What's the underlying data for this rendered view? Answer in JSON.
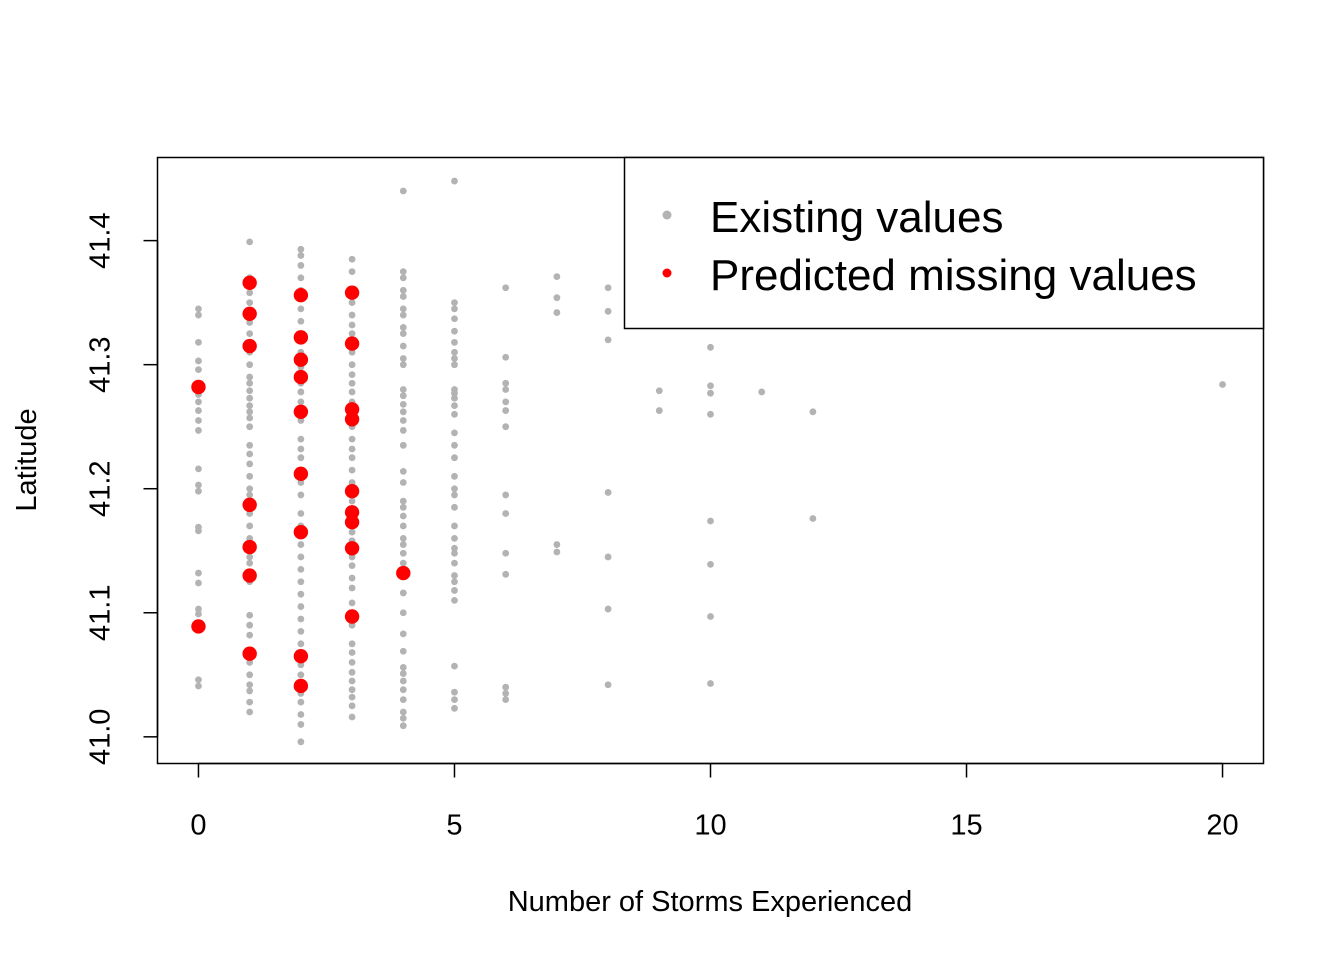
{
  "chart_data": {
    "type": "scatter",
    "title": "",
    "xlabel": "Number of Storms Experienced",
    "ylabel": "Latitude",
    "xlim": [
      -0.8,
      20.8
    ],
    "ylim": [
      40.9785,
      41.467
    ],
    "xticks": [
      0,
      5,
      10,
      15,
      20
    ],
    "xtick_labels": [
      "0",
      "5",
      "10",
      "15",
      "20"
    ],
    "yticks": [
      41.0,
      41.1,
      41.2,
      41.3,
      41.4
    ],
    "ytick_labels": [
      "41.0",
      "41.1",
      "41.2",
      "41.3",
      "41.4"
    ],
    "grid": false,
    "legend_position": "top-right",
    "series": [
      {
        "name": "Existing values",
        "color": "#b3b3b3",
        "marker": "small-dot",
        "points": [
          [
            0,
            41.345
          ],
          [
            0,
            41.34
          ],
          [
            0,
            41.318
          ],
          [
            0,
            41.303
          ],
          [
            0,
            41.296
          ],
          [
            0,
            41.283
          ],
          [
            0,
            41.276
          ],
          [
            0,
            41.27
          ],
          [
            0,
            41.263
          ],
          [
            0,
            41.255
          ],
          [
            0,
            41.247
          ],
          [
            0,
            41.216
          ],
          [
            0,
            41.203
          ],
          [
            0,
            41.198
          ],
          [
            0,
            41.169
          ],
          [
            0,
            41.166
          ],
          [
            0,
            41.132
          ],
          [
            0,
            41.124
          ],
          [
            0,
            41.103
          ],
          [
            0,
            41.099
          ],
          [
            0,
            41.046
          ],
          [
            0,
            41.041
          ],
          [
            1,
            41.399
          ],
          [
            1,
            41.37
          ],
          [
            1,
            41.358
          ],
          [
            1,
            41.35
          ],
          [
            1,
            41.334
          ],
          [
            1,
            41.325
          ],
          [
            1,
            41.31
          ],
          [
            1,
            41.3
          ],
          [
            1,
            41.29
          ],
          [
            1,
            41.285
          ],
          [
            1,
            41.279
          ],
          [
            1,
            41.273
          ],
          [
            1,
            41.267
          ],
          [
            1,
            41.262
          ],
          [
            1,
            41.257
          ],
          [
            1,
            41.25
          ],
          [
            1,
            41.235
          ],
          [
            1,
            41.228
          ],
          [
            1,
            41.22
          ],
          [
            1,
            41.21
          ],
          [
            1,
            41.2
          ],
          [
            1,
            41.195
          ],
          [
            1,
            41.18
          ],
          [
            1,
            41.17
          ],
          [
            1,
            41.16
          ],
          [
            1,
            41.145
          ],
          [
            1,
            41.14
          ],
          [
            1,
            41.125
          ],
          [
            1,
            41.098
          ],
          [
            1,
            41.09
          ],
          [
            1,
            41.082
          ],
          [
            1,
            41.07
          ],
          [
            1,
            41.06
          ],
          [
            1,
            41.05
          ],
          [
            1,
            41.042
          ],
          [
            1,
            41.037
          ],
          [
            1,
            41.028
          ],
          [
            1,
            41.02
          ],
          [
            2,
            41.393
          ],
          [
            2,
            41.388
          ],
          [
            2,
            41.38
          ],
          [
            2,
            41.37
          ],
          [
            2,
            41.36
          ],
          [
            2,
            41.345
          ],
          [
            2,
            41.335
          ],
          [
            2,
            41.31
          ],
          [
            2,
            41.298
          ],
          [
            2,
            41.285
          ],
          [
            2,
            41.278
          ],
          [
            2,
            41.27
          ],
          [
            2,
            41.255
          ],
          [
            2,
            41.24
          ],
          [
            2,
            41.232
          ],
          [
            2,
            41.225
          ],
          [
            2,
            41.215
          ],
          [
            2,
            41.205
          ],
          [
            2,
            41.195
          ],
          [
            2,
            41.18
          ],
          [
            2,
            41.17
          ],
          [
            2,
            41.155
          ],
          [
            2,
            41.145
          ],
          [
            2,
            41.135
          ],
          [
            2,
            41.125
          ],
          [
            2,
            41.115
          ],
          [
            2,
            41.105
          ],
          [
            2,
            41.095
          ],
          [
            2,
            41.085
          ],
          [
            2,
            41.075
          ],
          [
            2,
            41.058
          ],
          [
            2,
            41.05
          ],
          [
            2,
            41.035
          ],
          [
            2,
            41.028
          ],
          [
            2,
            41.018
          ],
          [
            2,
            41.01
          ],
          [
            2,
            40.996
          ],
          [
            3,
            41.385
          ],
          [
            3,
            41.375
          ],
          [
            3,
            41.36
          ],
          [
            3,
            41.35
          ],
          [
            3,
            41.34
          ],
          [
            3,
            41.332
          ],
          [
            3,
            41.325
          ],
          [
            3,
            41.31
          ],
          [
            3,
            41.3
          ],
          [
            3,
            41.292
          ],
          [
            3,
            41.285
          ],
          [
            3,
            41.278
          ],
          [
            3,
            41.27
          ],
          [
            3,
            41.25
          ],
          [
            3,
            41.24
          ],
          [
            3,
            41.232
          ],
          [
            3,
            41.225
          ],
          [
            3,
            41.215
          ],
          [
            3,
            41.205
          ],
          [
            3,
            41.19
          ],
          [
            3,
            41.165
          ],
          [
            3,
            41.158
          ],
          [
            3,
            41.145
          ],
          [
            3,
            41.138
          ],
          [
            3,
            41.128
          ],
          [
            3,
            41.12
          ],
          [
            3,
            41.108
          ],
          [
            3,
            41.09
          ],
          [
            3,
            41.075
          ],
          [
            3,
            41.068
          ],
          [
            3,
            41.06
          ],
          [
            3,
            41.052
          ],
          [
            3,
            41.045
          ],
          [
            3,
            41.038
          ],
          [
            3,
            41.032
          ],
          [
            3,
            41.025
          ],
          [
            3,
            41.016
          ],
          [
            4,
            41.44
          ],
          [
            4,
            41.375
          ],
          [
            4,
            41.37
          ],
          [
            4,
            41.36
          ],
          [
            4,
            41.355
          ],
          [
            4,
            41.345
          ],
          [
            4,
            41.34
          ],
          [
            4,
            41.33
          ],
          [
            4,
            41.325
          ],
          [
            4,
            41.315
          ],
          [
            4,
            41.305
          ],
          [
            4,
            41.3
          ],
          [
            4,
            41.28
          ],
          [
            4,
            41.275
          ],
          [
            4,
            41.268
          ],
          [
            4,
            41.262
          ],
          [
            4,
            41.255
          ],
          [
            4,
            41.247
          ],
          [
            4,
            41.235
          ],
          [
            4,
            41.214
          ],
          [
            4,
            41.205
          ],
          [
            4,
            41.19
          ],
          [
            4,
            41.185
          ],
          [
            4,
            41.178
          ],
          [
            4,
            41.17
          ],
          [
            4,
            41.16
          ],
          [
            4,
            41.155
          ],
          [
            4,
            41.148
          ],
          [
            4,
            41.14
          ],
          [
            4,
            41.132
          ],
          [
            4,
            41.116
          ],
          [
            4,
            41.1
          ],
          [
            4,
            41.083
          ],
          [
            4,
            41.069
          ],
          [
            4,
            41.056
          ],
          [
            4,
            41.051
          ],
          [
            4,
            41.045
          ],
          [
            4,
            41.038
          ],
          [
            4,
            41.03
          ],
          [
            4,
            41.02
          ],
          [
            4,
            41.015
          ],
          [
            4,
            41.009
          ],
          [
            5,
            41.448
          ],
          [
            5,
            41.35
          ],
          [
            5,
            41.345
          ],
          [
            5,
            41.337
          ],
          [
            5,
            41.327
          ],
          [
            5,
            41.318
          ],
          [
            5,
            41.31
          ],
          [
            5,
            41.305
          ],
          [
            5,
            41.3
          ],
          [
            5,
            41.28
          ],
          [
            5,
            41.277
          ],
          [
            5,
            41.273
          ],
          [
            5,
            41.267
          ],
          [
            5,
            41.26
          ],
          [
            5,
            41.245
          ],
          [
            5,
            41.235
          ],
          [
            5,
            41.225
          ],
          [
            5,
            41.21
          ],
          [
            5,
            41.2
          ],
          [
            5,
            41.195
          ],
          [
            5,
            41.185
          ],
          [
            5,
            41.17
          ],
          [
            5,
            41.16
          ],
          [
            5,
            41.152
          ],
          [
            5,
            41.148
          ],
          [
            5,
            41.14
          ],
          [
            5,
            41.13
          ],
          [
            5,
            41.125
          ],
          [
            5,
            41.118
          ],
          [
            5,
            41.11
          ],
          [
            5,
            41.057
          ],
          [
            5,
            41.036
          ],
          [
            5,
            41.03
          ],
          [
            5,
            41.023
          ],
          [
            6,
            41.362
          ],
          [
            6,
            41.306
          ],
          [
            6,
            41.285
          ],
          [
            6,
            41.28
          ],
          [
            6,
            41.27
          ],
          [
            6,
            41.263
          ],
          [
            6,
            41.25
          ],
          [
            6,
            41.195
          ],
          [
            6,
            41.18
          ],
          [
            6,
            41.148
          ],
          [
            6,
            41.131
          ],
          [
            6,
            41.04
          ],
          [
            6,
            41.035
          ],
          [
            6,
            41.03
          ],
          [
            7,
            41.371
          ],
          [
            7,
            41.354
          ],
          [
            7,
            41.342
          ],
          [
            7,
            41.155
          ],
          [
            7,
            41.149
          ],
          [
            8,
            41.362
          ],
          [
            8,
            41.343
          ],
          [
            8,
            41.32
          ],
          [
            8,
            41.197
          ],
          [
            8,
            41.145
          ],
          [
            8,
            41.103
          ],
          [
            8,
            41.042
          ],
          [
            9,
            41.279
          ],
          [
            9,
            41.263
          ],
          [
            10,
            41.314
          ],
          [
            10,
            41.283
          ],
          [
            10,
            41.277
          ],
          [
            10,
            41.26
          ],
          [
            10,
            41.174
          ],
          [
            10,
            41.139
          ],
          [
            10,
            41.097
          ],
          [
            10,
            41.043
          ],
          [
            11,
            41.278
          ],
          [
            12,
            41.262
          ],
          [
            12,
            41.176
          ],
          [
            20,
            41.284
          ]
        ]
      },
      {
        "name": "Predicted missing values",
        "color": "#ff0000",
        "marker": "large-dot",
        "points": [
          [
            0,
            41.282
          ],
          [
            0,
            41.089
          ],
          [
            1,
            41.366
          ],
          [
            1,
            41.341
          ],
          [
            1,
            41.315
          ],
          [
            1,
            41.187
          ],
          [
            1,
            41.153
          ],
          [
            1,
            41.13
          ],
          [
            1,
            41.067
          ],
          [
            2,
            41.356
          ],
          [
            2,
            41.322
          ],
          [
            2,
            41.304
          ],
          [
            2,
            41.29
          ],
          [
            2,
            41.262
          ],
          [
            2,
            41.212
          ],
          [
            2,
            41.165
          ],
          [
            2,
            41.065
          ],
          [
            2,
            41.041
          ],
          [
            3,
            41.358
          ],
          [
            3,
            41.317
          ],
          [
            3,
            41.264
          ],
          [
            3,
            41.256
          ],
          [
            3,
            41.198
          ],
          [
            3,
            41.181
          ],
          [
            3,
            41.173
          ],
          [
            3,
            41.152
          ],
          [
            3,
            41.097
          ],
          [
            4,
            41.132
          ]
        ]
      }
    ]
  }
}
